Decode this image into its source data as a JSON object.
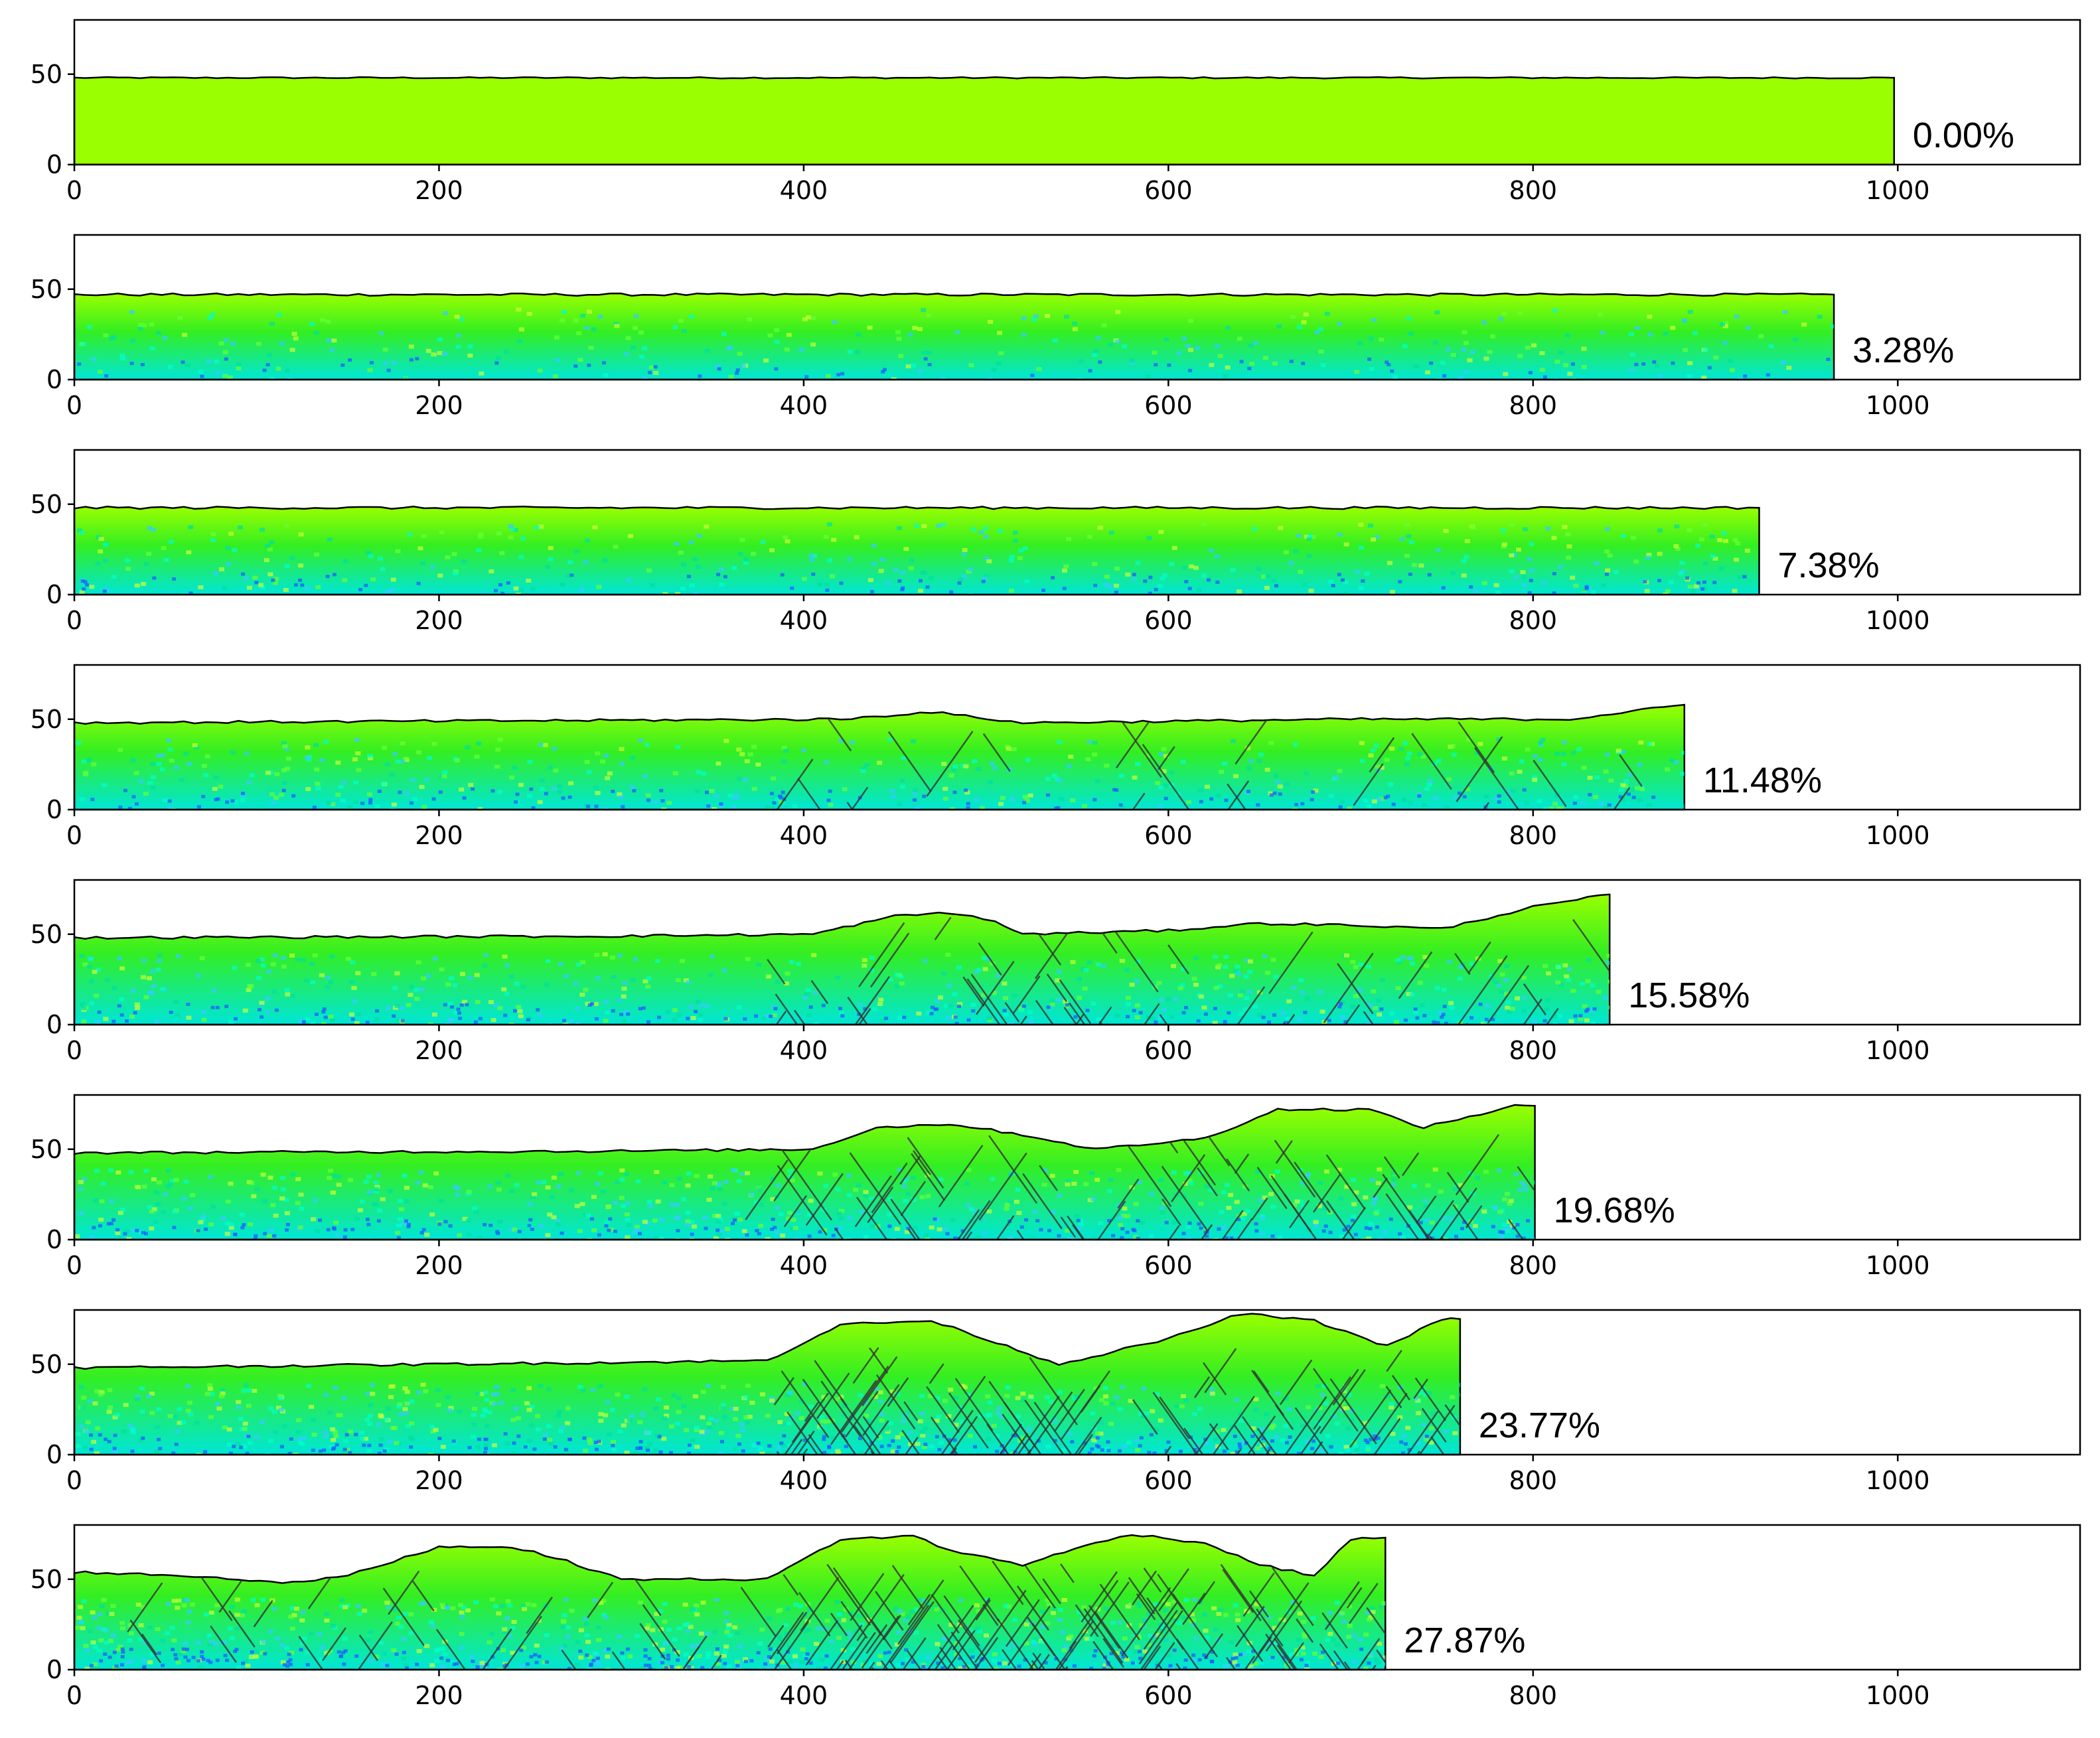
{
  "chart_data": {
    "type": "area",
    "xlim": [
      0,
      1100
    ],
    "ylim": [
      0,
      80
    ],
    "xticks": [
      0,
      200,
      400,
      600,
      800,
      1000
    ],
    "yticks": [
      0,
      50
    ],
    "colors": {
      "fill_high": "#9aff00",
      "fill_mid": "#33ee22",
      "fill_low": "#00e6d8",
      "crack": "#333333"
    },
    "panels": [
      {
        "label": "0.00%",
        "x_end": 998,
        "profile": [
          [
            0,
            48
          ],
          [
            998,
            48
          ]
        ]
      },
      {
        "label": "3.28%",
        "x_end": 965,
        "profile": [
          [
            0,
            47
          ],
          [
            965,
            47
          ]
        ]
      },
      {
        "label": "7.38%",
        "x_end": 924,
        "profile": [
          [
            0,
            48
          ],
          [
            924,
            48
          ]
        ]
      },
      {
        "label": "11.48%",
        "x_end": 883,
        "profile": [
          [
            0,
            48
          ],
          [
            420,
            50
          ],
          [
            470,
            54
          ],
          [
            520,
            48
          ],
          [
            700,
            50
          ],
          [
            820,
            50
          ],
          [
            883,
            58
          ]
        ]
      },
      {
        "label": "15.58%",
        "x_end": 842,
        "profile": [
          [
            0,
            48
          ],
          [
            300,
            49
          ],
          [
            405,
            50
          ],
          [
            450,
            60
          ],
          [
            480,
            62
          ],
          [
            505,
            57
          ],
          [
            520,
            50
          ],
          [
            600,
            52
          ],
          [
            650,
            56
          ],
          [
            700,
            55
          ],
          [
            750,
            53
          ],
          [
            800,
            65
          ],
          [
            842,
            72
          ]
        ]
      },
      {
        "label": "19.68%",
        "x_end": 801,
        "profile": [
          [
            0,
            48
          ],
          [
            300,
            49
          ],
          [
            405,
            50
          ],
          [
            440,
            62
          ],
          [
            480,
            64
          ],
          [
            520,
            58
          ],
          [
            560,
            50
          ],
          [
            620,
            56
          ],
          [
            660,
            72
          ],
          [
            710,
            72
          ],
          [
            740,
            62
          ],
          [
            790,
            74
          ],
          [
            801,
            74
          ]
        ]
      },
      {
        "label": "23.77%",
        "x_end": 760,
        "profile": [
          [
            0,
            48
          ],
          [
            300,
            51
          ],
          [
            380,
            52
          ],
          [
            420,
            72
          ],
          [
            470,
            74
          ],
          [
            500,
            64
          ],
          [
            540,
            50
          ],
          [
            600,
            64
          ],
          [
            640,
            78
          ],
          [
            680,
            74
          ],
          [
            720,
            60
          ],
          [
            750,
            75
          ],
          [
            760,
            75
          ]
        ]
      },
      {
        "label": "27.87%",
        "x_end": 719,
        "profile": [
          [
            0,
            54
          ],
          [
            60,
            52
          ],
          [
            120,
            48
          ],
          [
            150,
            52
          ],
          [
            200,
            68
          ],
          [
            240,
            68
          ],
          [
            270,
            60
          ],
          [
            300,
            50
          ],
          [
            350,
            50
          ],
          [
            380,
            50
          ],
          [
            420,
            72
          ],
          [
            460,
            74
          ],
          [
            480,
            66
          ],
          [
            500,
            62
          ],
          [
            520,
            58
          ],
          [
            560,
            70
          ],
          [
            580,
            75
          ],
          [
            620,
            70
          ],
          [
            650,
            58
          ],
          [
            680,
            52
          ],
          [
            700,
            72
          ],
          [
            719,
            73
          ]
        ]
      }
    ]
  }
}
